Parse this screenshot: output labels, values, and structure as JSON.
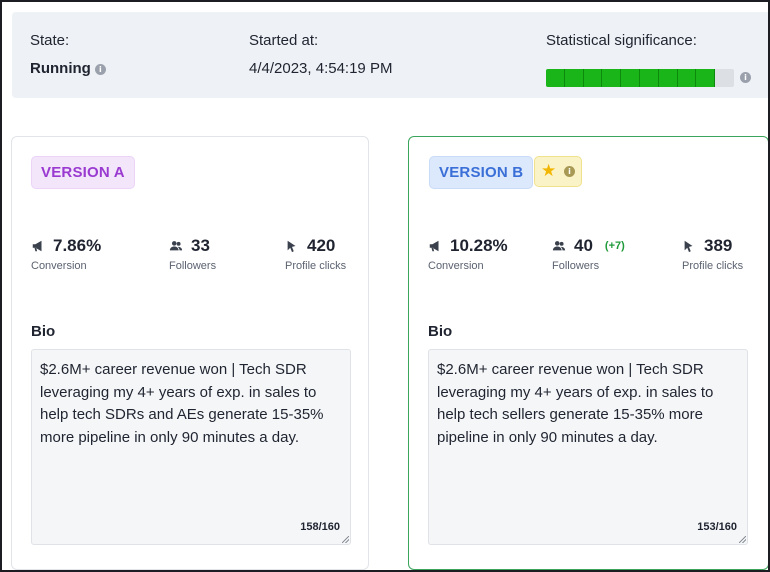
{
  "status": {
    "state_label": "State:",
    "state_value": "Running",
    "started_label": "Started at:",
    "started_value": "4/4/2023, 4:54:19 PM",
    "significance_label": "Statistical significance:",
    "significance_level": 0.9,
    "significance_color": "#19b519"
  },
  "version_a": {
    "badge": "VERSION A",
    "conversion": "7.86%",
    "conversion_label": "Conversion",
    "followers": "33",
    "followers_label": "Followers",
    "clicks": "420",
    "clicks_label": "Profile clicks",
    "bio_label": "Bio",
    "bio_text": "$2.6M+ career revenue won | Tech SDR leveraging my 4+ years of exp. in sales to help tech SDRs and AEs generate 15-35% more pipeline in only 90 minutes a day.",
    "bio_count": "158/160",
    "accent": "#9a3ad0"
  },
  "version_b": {
    "badge": "VERSION B",
    "winner_icon": "star-icon",
    "conversion": "10.28%",
    "conversion_label": "Conversion",
    "followers": "40",
    "followers_delta": "(+7)",
    "followers_label": "Followers",
    "clicks": "389",
    "clicks_label": "Profile clicks",
    "bio_label": "Bio",
    "bio_text": "$2.6M+ career revenue won | Tech SDR leveraging my 4+ years of exp. in sales to help tech sellers generate 15-35% more pipeline in only 90 minutes a day.",
    "bio_count": "153/160",
    "accent": "#3a6fd8",
    "border_color": "#3ba55c"
  },
  "icons": {
    "conversion": "megaphone-icon",
    "followers": "users-icon",
    "clicks": "cursor-icon",
    "info": "info-icon"
  }
}
